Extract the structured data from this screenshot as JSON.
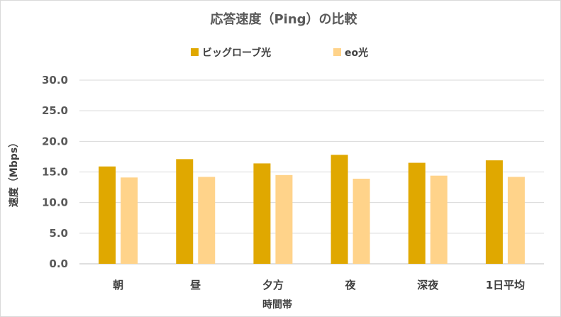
{
  "chart_data": {
    "type": "bar",
    "title": "応答速度（Ping）の比較",
    "xlabel": "時間帯",
    "ylabel": "速度（Mbps）",
    "categories": [
      "朝",
      "昼",
      "夕方",
      "夜",
      "深夜",
      "1日平均"
    ],
    "series": [
      {
        "name": "ビッグローブ光",
        "color": "#e0a800",
        "values": [
          15.9,
          17.1,
          16.4,
          17.8,
          16.5,
          16.9
        ]
      },
      {
        "name": "eo光",
        "color": "#ffd38a",
        "values": [
          14.1,
          14.2,
          14.5,
          13.9,
          14.4,
          14.2
        ]
      }
    ],
    "ylim": [
      0,
      30
    ],
    "yticks": [
      "0.0",
      "5.0",
      "10.0",
      "15.0",
      "20.0",
      "25.0",
      "30.0"
    ],
    "grid": true,
    "legend_position": "top-center"
  }
}
